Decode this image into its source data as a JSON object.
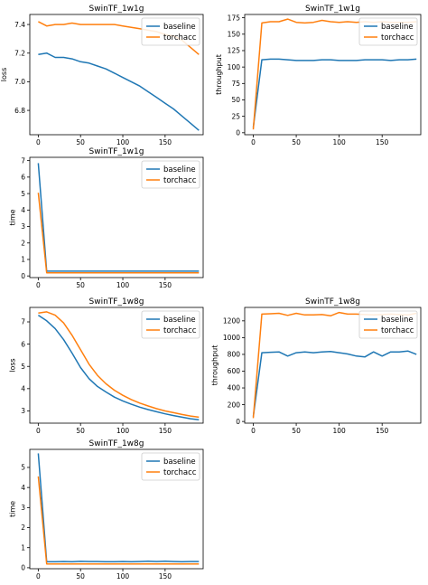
{
  "colors": {
    "baseline": "#1f77b4",
    "torchacc": "#ff7f0e"
  },
  "chart_data": [
    {
      "type": "line",
      "title": "SwinTF_1w1g",
      "xlabel": "",
      "ylabel": "loss",
      "xlim": [
        -10,
        195
      ],
      "ylim": [
        6.63,
        7.47
      ],
      "xticks": [
        0,
        50,
        100,
        150
      ],
      "yticks": [
        6.8,
        7.0,
        7.2,
        7.4
      ],
      "ytick_labels": [
        "6.8",
        "7.0",
        "7.2",
        "7.4"
      ],
      "legend": "top-right",
      "grid": false,
      "series": [
        {
          "name": "baseline",
          "x": [
            0,
            10,
            20,
            30,
            40,
            50,
            60,
            70,
            80,
            90,
            100,
            110,
            120,
            130,
            140,
            150,
            160,
            170,
            180,
            190
          ],
          "values": [
            7.19,
            7.2,
            7.17,
            7.17,
            7.16,
            7.14,
            7.13,
            7.11,
            7.09,
            7.06,
            7.03,
            7.0,
            6.97,
            6.93,
            6.89,
            6.85,
            6.81,
            6.76,
            6.71,
            6.66
          ]
        },
        {
          "name": "torchacc",
          "x": [
            0,
            10,
            20,
            30,
            40,
            50,
            60,
            70,
            80,
            90,
            100,
            110,
            120,
            130,
            140,
            150,
            160,
            170,
            180,
            190
          ],
          "values": [
            7.42,
            7.39,
            7.4,
            7.4,
            7.41,
            7.4,
            7.4,
            7.4,
            7.4,
            7.4,
            7.39,
            7.38,
            7.37,
            7.36,
            7.35,
            7.33,
            7.32,
            7.29,
            7.24,
            7.19
          ]
        }
      ]
    },
    {
      "type": "line",
      "title": "SwinTF_1w1g",
      "xlabel": "",
      "ylabel": "throughput",
      "xlim": [
        -10,
        195
      ],
      "ylim": [
        -3,
        180
      ],
      "xticks": [
        0,
        50,
        100,
        150
      ],
      "yticks": [
        0,
        25,
        50,
        75,
        100,
        125,
        150,
        175
      ],
      "ytick_labels": [
        "0",
        "25",
        "50",
        "75",
        "100",
        "125",
        "150",
        "175"
      ],
      "legend": "top-right",
      "grid": false,
      "series": [
        {
          "name": "baseline",
          "x": [
            0,
            10,
            20,
            30,
            40,
            50,
            60,
            70,
            80,
            90,
            100,
            110,
            120,
            130,
            140,
            150,
            160,
            170,
            180,
            190
          ],
          "values": [
            8,
            111,
            112,
            112,
            111,
            110,
            110,
            110,
            111,
            111,
            110,
            110,
            110,
            111,
            111,
            111,
            110,
            111,
            111,
            112
          ]
        },
        {
          "name": "torchacc",
          "x": [
            0,
            10,
            20,
            30,
            40,
            50,
            60,
            70,
            80,
            90,
            100,
            110,
            120,
            130,
            140,
            150,
            160,
            170,
            180,
            190
          ],
          "values": [
            5,
            167,
            169,
            169,
            173,
            168,
            167,
            168,
            171,
            169,
            168,
            169,
            168,
            169,
            168,
            169,
            168,
            168,
            168,
            169
          ]
        }
      ]
    },
    {
      "type": "line",
      "title": "SwinTF_1w1g",
      "xlabel": "",
      "ylabel": "time",
      "xlim": [
        -10,
        195
      ],
      "ylim": [
        -0.1,
        7.2
      ],
      "xticks": [
        0,
        50,
        100,
        150
      ],
      "yticks": [
        0,
        1,
        2,
        3,
        4,
        5,
        6,
        7
      ],
      "ytick_labels": [
        "0",
        "1",
        "2",
        "3",
        "4",
        "5",
        "6",
        "7"
      ],
      "legend": "top-right",
      "grid": false,
      "series": [
        {
          "name": "baseline",
          "x": [
            0,
            10,
            20,
            30,
            40,
            50,
            60,
            70,
            80,
            90,
            100,
            110,
            120,
            130,
            140,
            150,
            160,
            170,
            180,
            190
          ],
          "values": [
            6.85,
            0.29,
            0.29,
            0.29,
            0.29,
            0.29,
            0.29,
            0.29,
            0.29,
            0.29,
            0.29,
            0.29,
            0.29,
            0.29,
            0.29,
            0.29,
            0.29,
            0.29,
            0.29,
            0.29
          ]
        },
        {
          "name": "torchacc",
          "x": [
            0,
            10,
            20,
            30,
            40,
            50,
            60,
            70,
            80,
            90,
            100,
            110,
            120,
            130,
            140,
            150,
            160,
            170,
            180,
            190
          ],
          "values": [
            5.05,
            0.19,
            0.19,
            0.19,
            0.19,
            0.19,
            0.19,
            0.19,
            0.19,
            0.19,
            0.19,
            0.19,
            0.19,
            0.19,
            0.19,
            0.19,
            0.19,
            0.19,
            0.19,
            0.19
          ]
        }
      ]
    },
    {
      "type": "line",
      "title": "SwinTF_1w8g",
      "xlabel": "",
      "ylabel": "loss",
      "xlim": [
        -10,
        195
      ],
      "ylim": [
        2.45,
        7.65
      ],
      "xticks": [
        0,
        50,
        100,
        150
      ],
      "yticks": [
        3,
        4,
        5,
        6,
        7
      ],
      "ytick_labels": [
        "3",
        "4",
        "5",
        "6",
        "7"
      ],
      "legend": "top-right",
      "grid": false,
      "series": [
        {
          "name": "baseline",
          "x": [
            0,
            10,
            20,
            30,
            40,
            50,
            60,
            70,
            80,
            90,
            100,
            110,
            120,
            130,
            140,
            150,
            160,
            170,
            180,
            190
          ],
          "values": [
            7.3,
            7.05,
            6.7,
            6.2,
            5.6,
            4.95,
            4.45,
            4.1,
            3.85,
            3.62,
            3.45,
            3.3,
            3.17,
            3.06,
            2.96,
            2.87,
            2.79,
            2.72,
            2.65,
            2.6
          ]
        },
        {
          "name": "torchacc",
          "x": [
            0,
            10,
            20,
            30,
            40,
            50,
            60,
            70,
            80,
            90,
            100,
            110,
            120,
            130,
            140,
            150,
            160,
            170,
            180,
            190
          ],
          "values": [
            7.4,
            7.45,
            7.3,
            6.95,
            6.4,
            5.75,
            5.1,
            4.6,
            4.22,
            3.93,
            3.7,
            3.51,
            3.35,
            3.22,
            3.1,
            3.0,
            2.92,
            2.84,
            2.77,
            2.72
          ]
        }
      ]
    },
    {
      "type": "line",
      "title": "SwinTF_1w8g",
      "xlabel": "",
      "ylabel": "throughput",
      "xlim": [
        -10,
        195
      ],
      "ylim": [
        -20,
        1360
      ],
      "xticks": [
        0,
        50,
        100,
        150
      ],
      "yticks": [
        0,
        200,
        400,
        600,
        800,
        1000,
        1200
      ],
      "ytick_labels": [
        "0",
        "200",
        "400",
        "600",
        "800",
        "1000",
        "1200"
      ],
      "legend": "top-right",
      "grid": false,
      "series": [
        {
          "name": "baseline",
          "x": [
            0,
            10,
            20,
            30,
            40,
            50,
            60,
            70,
            80,
            90,
            100,
            110,
            120,
            130,
            140,
            150,
            160,
            170,
            180,
            190
          ],
          "values": [
            60,
            820,
            825,
            830,
            780,
            820,
            830,
            820,
            830,
            835,
            820,
            805,
            780,
            770,
            830,
            780,
            830,
            830,
            840,
            800
          ]
        },
        {
          "name": "torchacc",
          "x": [
            0,
            10,
            20,
            30,
            40,
            50,
            60,
            70,
            80,
            90,
            100,
            110,
            120,
            130,
            140,
            150,
            160,
            170,
            180,
            190
          ],
          "values": [
            40,
            1280,
            1285,
            1290,
            1265,
            1290,
            1270,
            1270,
            1275,
            1260,
            1300,
            1280,
            1280,
            1275,
            1270,
            1275,
            1280,
            1275,
            1270,
            1290
          ]
        }
      ]
    },
    {
      "type": "line",
      "title": "SwinTF_1w8g",
      "xlabel": "",
      "ylabel": "time",
      "xlim": [
        -10,
        195
      ],
      "ylim": [
        -0.05,
        5.9
      ],
      "xticks": [
        0,
        50,
        100,
        150
      ],
      "yticks": [
        0,
        1,
        2,
        3,
        4,
        5
      ],
      "ytick_labels": [
        "0",
        "1",
        "2",
        "3",
        "4",
        "5"
      ],
      "legend": "top-right",
      "grid": false,
      "series": [
        {
          "name": "baseline",
          "x": [
            0,
            10,
            20,
            30,
            40,
            50,
            60,
            70,
            80,
            90,
            100,
            110,
            120,
            130,
            140,
            150,
            160,
            170,
            180,
            190
          ],
          "values": [
            5.7,
            0.3,
            0.3,
            0.31,
            0.3,
            0.32,
            0.31,
            0.31,
            0.3,
            0.3,
            0.31,
            0.3,
            0.31,
            0.33,
            0.31,
            0.33,
            0.31,
            0.3,
            0.31,
            0.31
          ]
        },
        {
          "name": "torchacc",
          "x": [
            0,
            10,
            20,
            30,
            40,
            50,
            60,
            70,
            80,
            90,
            100,
            110,
            120,
            130,
            140,
            150,
            160,
            170,
            180,
            190
          ],
          "values": [
            4.55,
            0.19,
            0.19,
            0.19,
            0.19,
            0.19,
            0.19,
            0.19,
            0.19,
            0.19,
            0.19,
            0.19,
            0.19,
            0.19,
            0.19,
            0.19,
            0.19,
            0.19,
            0.19,
            0.19
          ]
        }
      ]
    }
  ]
}
